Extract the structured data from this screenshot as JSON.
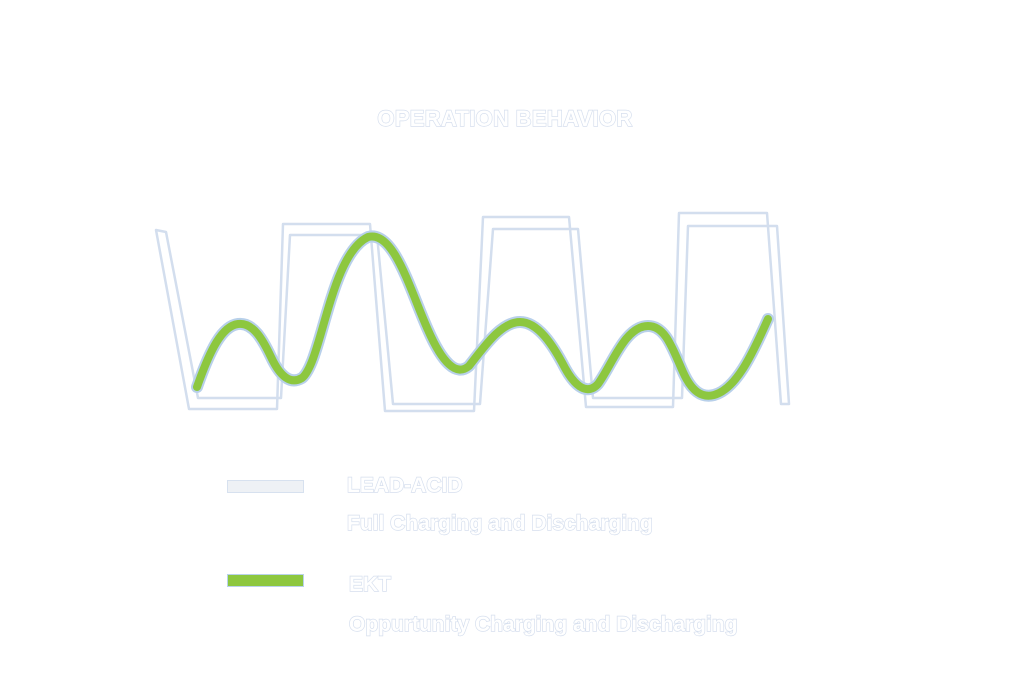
{
  "title": "OPERATION BEHAVIOR",
  "legend": [
    {
      "title": "LEAD-ACID",
      "subtitle": "Full Charging and Discharging",
      "color": "#eef1f5"
    },
    {
      "title": "EKT",
      "subtitle": "Oppurtunity Charging and Discharging",
      "color": "#8dc73f"
    }
  ],
  "colors": {
    "lead_acid_outline": "#d3deee",
    "ekt_line": "#8dc73f",
    "ekt_outline": "#b8d0ea",
    "text_outline": "#d6dfee"
  }
}
